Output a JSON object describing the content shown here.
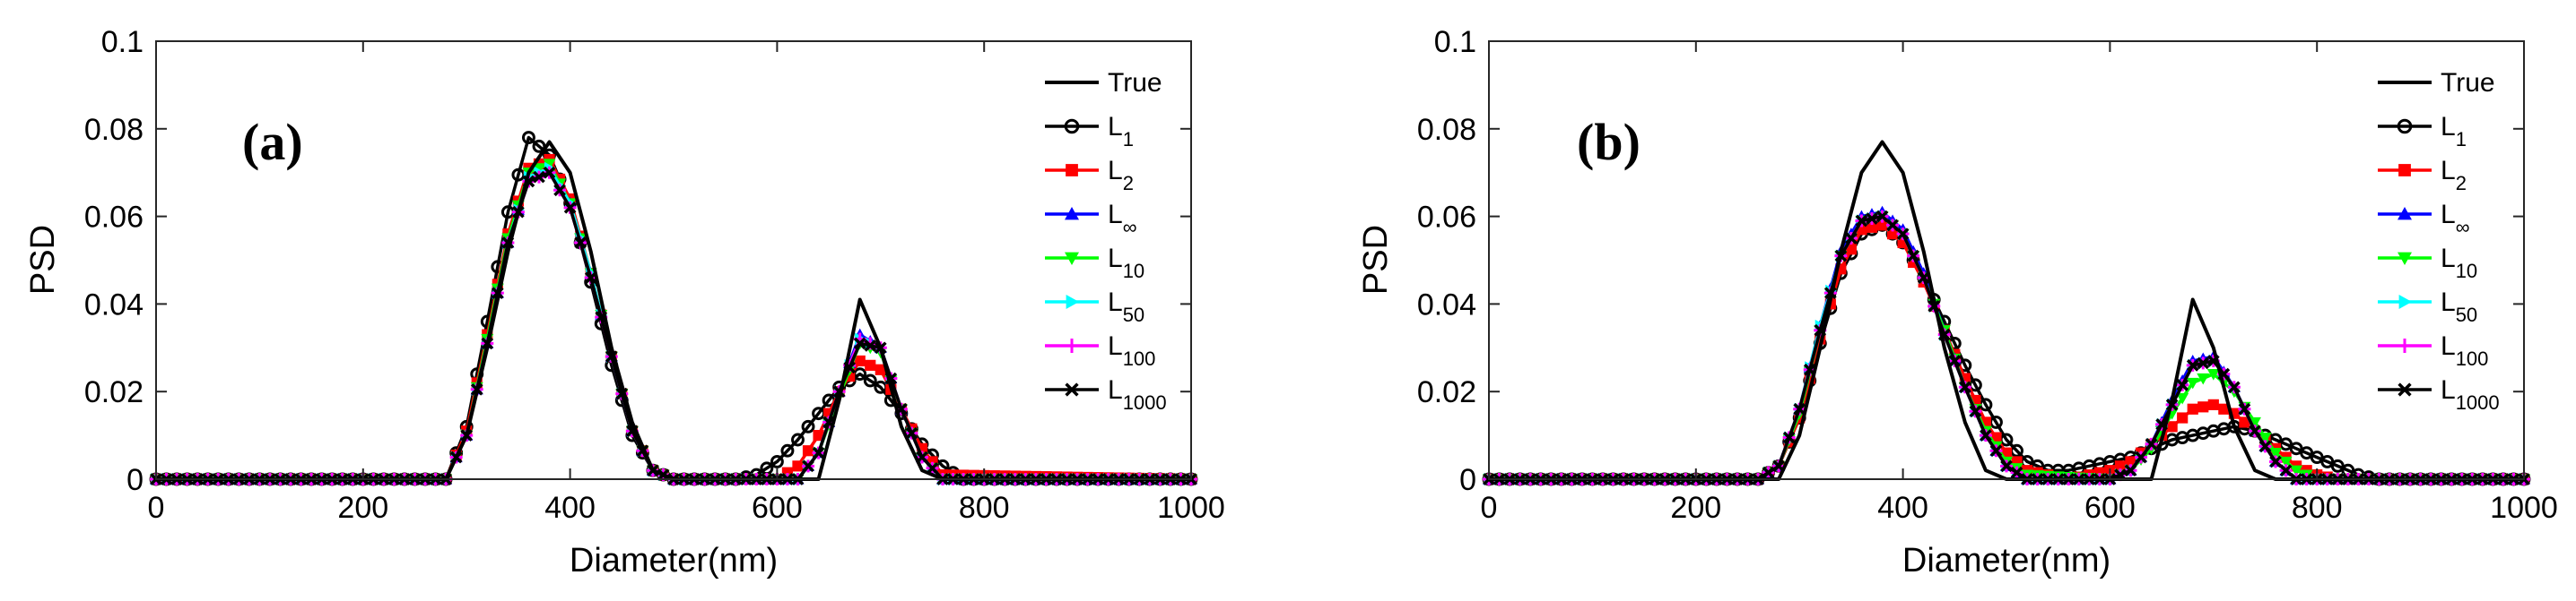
{
  "chart_data": [
    {
      "type": "line",
      "panel_label": "(a)",
      "xlabel": "Diameter(nm)",
      "ylabel": "PSD",
      "xlim": [
        0,
        1000
      ],
      "ylim": [
        0,
        0.1
      ],
      "xticks": [
        "0",
        "200",
        "400",
        "600",
        "800",
        "1000"
      ],
      "yticks": [
        "0",
        "0.02",
        "0.04",
        "0.06",
        "0.08",
        "0.1"
      ],
      "legend_position": "top-right",
      "series": [
        {
          "name": "True",
          "label_base": "True",
          "label_sub": "",
          "color": "#000000",
          "marker": "none",
          "x": [
            0,
            280,
            300,
            320,
            340,
            360,
            380,
            400,
            420,
            440,
            460,
            480,
            500,
            640,
            660,
            680,
            700,
            720,
            740,
            760,
            1000
          ],
          "y": [
            0,
            0,
            0.01,
            0.03,
            0.052,
            0.07,
            0.077,
            0.07,
            0.052,
            0.03,
            0.013,
            0.002,
            0,
            0,
            0.018,
            0.041,
            0.03,
            0.012,
            0.002,
            0,
            0
          ]
        },
        {
          "name": "L1",
          "label_base": "L",
          "label_sub": "1",
          "color": "#000000",
          "marker": "circle",
          "x": [
            0,
            280,
            300,
            320,
            340,
            360,
            380,
            400,
            420,
            440,
            460,
            480,
            500,
            560,
            580,
            600,
            620,
            640,
            660,
            680,
            700,
            720,
            740,
            760,
            780,
            1000
          ],
          "y": [
            0,
            0,
            0.012,
            0.036,
            0.061,
            0.078,
            0.074,
            0.063,
            0.045,
            0.026,
            0.01,
            0.002,
            0,
            0,
            0.001,
            0.004,
            0.009,
            0.015,
            0.021,
            0.024,
            0.021,
            0.015,
            0.008,
            0.003,
            0,
            0
          ]
        },
        {
          "name": "L2",
          "label_base": "L",
          "label_sub": "2",
          "color": "#ff0000",
          "marker": "square",
          "x": [
            0,
            280,
            300,
            320,
            340,
            360,
            380,
            400,
            420,
            440,
            460,
            480,
            500,
            600,
            620,
            640,
            660,
            680,
            700,
            720,
            740,
            760,
            1000
          ],
          "y": [
            0,
            0,
            0.011,
            0.033,
            0.056,
            0.071,
            0.073,
            0.064,
            0.047,
            0.028,
            0.011,
            0.002,
            0,
            0,
            0.003,
            0.01,
            0.02,
            0.027,
            0.025,
            0.016,
            0.007,
            0.001,
            0
          ]
        },
        {
          "name": "L∞",
          "label_base": "L",
          "label_sub": "∞",
          "color": "#0000ff",
          "marker": "triangle-up",
          "x": [
            0,
            280,
            300,
            320,
            340,
            360,
            380,
            400,
            420,
            440,
            460,
            480,
            500,
            620,
            640,
            660,
            680,
            700,
            720,
            740,
            760,
            1000
          ],
          "y": [
            0,
            0,
            0.01,
            0.031,
            0.054,
            0.069,
            0.071,
            0.063,
            0.047,
            0.028,
            0.011,
            0.002,
            0,
            0,
            0.006,
            0.02,
            0.033,
            0.03,
            0.016,
            0.005,
            0,
            0
          ]
        },
        {
          "name": "L10",
          "label_base": "L",
          "label_sub": "10",
          "color": "#00ff00",
          "marker": "triangle-down",
          "x": [
            0,
            280,
            300,
            320,
            340,
            360,
            380,
            400,
            420,
            440,
            460,
            480,
            500,
            620,
            640,
            660,
            680,
            700,
            720,
            740,
            760,
            1000
          ],
          "y": [
            0,
            0,
            0.01,
            0.032,
            0.055,
            0.07,
            0.072,
            0.063,
            0.047,
            0.028,
            0.011,
            0.002,
            0,
            0,
            0.006,
            0.019,
            0.031,
            0.029,
            0.016,
            0.005,
            0,
            0
          ]
        },
        {
          "name": "L50",
          "label_base": "L",
          "label_sub": "50",
          "color": "#00ffff",
          "marker": "triangle-right",
          "x": [
            0,
            280,
            300,
            320,
            340,
            360,
            380,
            400,
            420,
            440,
            460,
            480,
            500,
            620,
            640,
            660,
            680,
            700,
            720,
            740,
            760,
            1000
          ],
          "y": [
            0,
            0,
            0.01,
            0.031,
            0.054,
            0.069,
            0.071,
            0.063,
            0.047,
            0.028,
            0.011,
            0.002,
            0,
            0,
            0.006,
            0.02,
            0.032,
            0.03,
            0.016,
            0.005,
            0,
            0
          ]
        },
        {
          "name": "L100",
          "label_base": "L",
          "label_sub": "100",
          "color": "#ff00ff",
          "marker": "plus",
          "x": [
            0,
            280,
            300,
            320,
            340,
            360,
            380,
            400,
            420,
            440,
            460,
            480,
            500,
            620,
            640,
            660,
            680,
            700,
            720,
            740,
            760,
            1000
          ],
          "y": [
            0,
            0,
            0.01,
            0.031,
            0.054,
            0.068,
            0.07,
            0.062,
            0.046,
            0.028,
            0.011,
            0.002,
            0,
            0,
            0.006,
            0.02,
            0.032,
            0.03,
            0.016,
            0.005,
            0,
            0
          ]
        },
        {
          "name": "L1000",
          "label_base": "L",
          "label_sub": "1000",
          "color": "#000000",
          "marker": "x",
          "x": [
            0,
            280,
            300,
            320,
            340,
            360,
            380,
            400,
            420,
            440,
            460,
            480,
            500,
            620,
            640,
            660,
            680,
            700,
            720,
            740,
            760,
            1000
          ],
          "y": [
            0,
            0,
            0.01,
            0.031,
            0.054,
            0.068,
            0.07,
            0.062,
            0.046,
            0.028,
            0.011,
            0.002,
            0,
            0,
            0.006,
            0.02,
            0.031,
            0.03,
            0.016,
            0.005,
            0,
            0
          ]
        }
      ]
    },
    {
      "type": "line",
      "panel_label": "(b)",
      "xlabel": "Diameter(nm)",
      "ylabel": "PSD",
      "xlim": [
        0,
        1000
      ],
      "ylim": [
        0,
        0.1
      ],
      "xticks": [
        "0",
        "200",
        "400",
        "600",
        "800",
        "1000"
      ],
      "yticks": [
        "0",
        "0.02",
        "0.04",
        "0.06",
        "0.08",
        "0.1"
      ],
      "legend_position": "top-right",
      "series": [
        {
          "name": "True",
          "label_base": "True",
          "label_sub": "",
          "color": "#000000",
          "marker": "none",
          "x": [
            0,
            280,
            300,
            320,
            340,
            360,
            380,
            400,
            420,
            440,
            460,
            480,
            500,
            640,
            660,
            680,
            700,
            720,
            740,
            760,
            1000
          ],
          "y": [
            0,
            0,
            0.01,
            0.03,
            0.052,
            0.07,
            0.077,
            0.07,
            0.052,
            0.03,
            0.013,
            0.002,
            0,
            0,
            0.018,
            0.041,
            0.03,
            0.012,
            0.002,
            0,
            0
          ]
        },
        {
          "name": "L1",
          "label_base": "L",
          "label_sub": "1",
          "color": "#000000",
          "marker": "circle",
          "x": [
            0,
            260,
            280,
            300,
            320,
            340,
            360,
            380,
            400,
            420,
            440,
            460,
            480,
            500,
            520,
            540,
            560,
            580,
            600,
            620,
            640,
            660,
            680,
            700,
            720,
            740,
            760,
            780,
            800,
            820,
            840,
            860,
            1000
          ],
          "y": [
            0,
            0,
            0.003,
            0.014,
            0.031,
            0.047,
            0.056,
            0.058,
            0.054,
            0.046,
            0.036,
            0.026,
            0.017,
            0.009,
            0.004,
            0.002,
            0.002,
            0.003,
            0.004,
            0.005,
            0.007,
            0.009,
            0.01,
            0.011,
            0.012,
            0.011,
            0.009,
            0.007,
            0.005,
            0.003,
            0.001,
            0,
            0
          ]
        },
        {
          "name": "L2",
          "label_base": "L",
          "label_sub": "2",
          "color": "#ff0000",
          "marker": "square",
          "x": [
            0,
            260,
            280,
            300,
            320,
            340,
            360,
            380,
            400,
            420,
            440,
            460,
            480,
            500,
            520,
            560,
            580,
            600,
            620,
            640,
            660,
            680,
            700,
            720,
            740,
            760,
            780,
            800,
            820,
            1000
          ],
          "y": [
            0,
            0,
            0.003,
            0.014,
            0.032,
            0.048,
            0.057,
            0.058,
            0.054,
            0.045,
            0.034,
            0.023,
            0.013,
            0.006,
            0.002,
            0,
            0.001,
            0.002,
            0.004,
            0.008,
            0.012,
            0.016,
            0.017,
            0.015,
            0.011,
            0.007,
            0.003,
            0.001,
            0,
            0
          ]
        },
        {
          "name": "L∞",
          "label_base": "L",
          "label_sub": "∞",
          "color": "#0000ff",
          "marker": "triangle-up",
          "x": [
            0,
            260,
            280,
            300,
            320,
            340,
            360,
            380,
            400,
            420,
            440,
            460,
            480,
            500,
            520,
            600,
            620,
            640,
            660,
            680,
            700,
            720,
            740,
            760,
            780,
            1000
          ],
          "y": [
            0,
            0,
            0.003,
            0.016,
            0.035,
            0.052,
            0.06,
            0.061,
            0.057,
            0.047,
            0.034,
            0.021,
            0.01,
            0.003,
            0,
            0,
            0.002,
            0.008,
            0.018,
            0.027,
            0.028,
            0.021,
            0.011,
            0.004,
            0,
            0
          ]
        },
        {
          "name": "L10",
          "label_base": "L",
          "label_sub": "10",
          "color": "#00ff00",
          "marker": "triangle-down",
          "x": [
            0,
            260,
            280,
            300,
            320,
            340,
            360,
            380,
            400,
            420,
            440,
            460,
            480,
            500,
            520,
            600,
            620,
            640,
            660,
            680,
            700,
            720,
            740,
            760,
            780,
            800,
            1000
          ],
          "y": [
            0,
            0,
            0.003,
            0.015,
            0.034,
            0.051,
            0.059,
            0.06,
            0.056,
            0.046,
            0.034,
            0.021,
            0.011,
            0.004,
            0.001,
            0,
            0.002,
            0.007,
            0.015,
            0.022,
            0.024,
            0.02,
            0.013,
            0.006,
            0.002,
            0,
            0
          ]
        },
        {
          "name": "L50",
          "label_base": "L",
          "label_sub": "50",
          "color": "#00ffff",
          "marker": "triangle-right",
          "x": [
            0,
            260,
            280,
            300,
            320,
            340,
            360,
            380,
            400,
            420,
            440,
            460,
            480,
            500,
            520,
            600,
            620,
            640,
            660,
            680,
            700,
            720,
            740,
            760,
            780,
            1000
          ],
          "y": [
            0,
            0,
            0.003,
            0.016,
            0.035,
            0.051,
            0.059,
            0.06,
            0.056,
            0.046,
            0.033,
            0.021,
            0.01,
            0.003,
            0,
            0,
            0.002,
            0.008,
            0.017,
            0.026,
            0.027,
            0.021,
            0.011,
            0.004,
            0,
            0
          ]
        },
        {
          "name": "L100",
          "label_base": "L",
          "label_sub": "100",
          "color": "#ff00ff",
          "marker": "plus",
          "x": [
            0,
            260,
            280,
            300,
            320,
            340,
            360,
            380,
            400,
            420,
            440,
            460,
            480,
            500,
            520,
            600,
            620,
            640,
            660,
            680,
            700,
            720,
            740,
            760,
            780,
            1000
          ],
          "y": [
            0,
            0,
            0.003,
            0.016,
            0.034,
            0.051,
            0.059,
            0.06,
            0.056,
            0.046,
            0.033,
            0.021,
            0.01,
            0.003,
            0,
            0,
            0.002,
            0.008,
            0.017,
            0.026,
            0.027,
            0.021,
            0.011,
            0.004,
            0,
            0
          ]
        },
        {
          "name": "L1000",
          "label_base": "L",
          "label_sub": "1000",
          "color": "#000000",
          "marker": "x",
          "x": [
            0,
            260,
            280,
            300,
            320,
            340,
            360,
            380,
            400,
            420,
            440,
            460,
            480,
            500,
            520,
            600,
            620,
            640,
            660,
            680,
            700,
            720,
            740,
            760,
            780,
            1000
          ],
          "y": [
            0,
            0,
            0.003,
            0.016,
            0.034,
            0.051,
            0.059,
            0.06,
            0.056,
            0.046,
            0.033,
            0.021,
            0.01,
            0.003,
            0,
            0,
            0.002,
            0.008,
            0.017,
            0.026,
            0.027,
            0.021,
            0.011,
            0.004,
            0,
            0
          ]
        }
      ]
    }
  ]
}
